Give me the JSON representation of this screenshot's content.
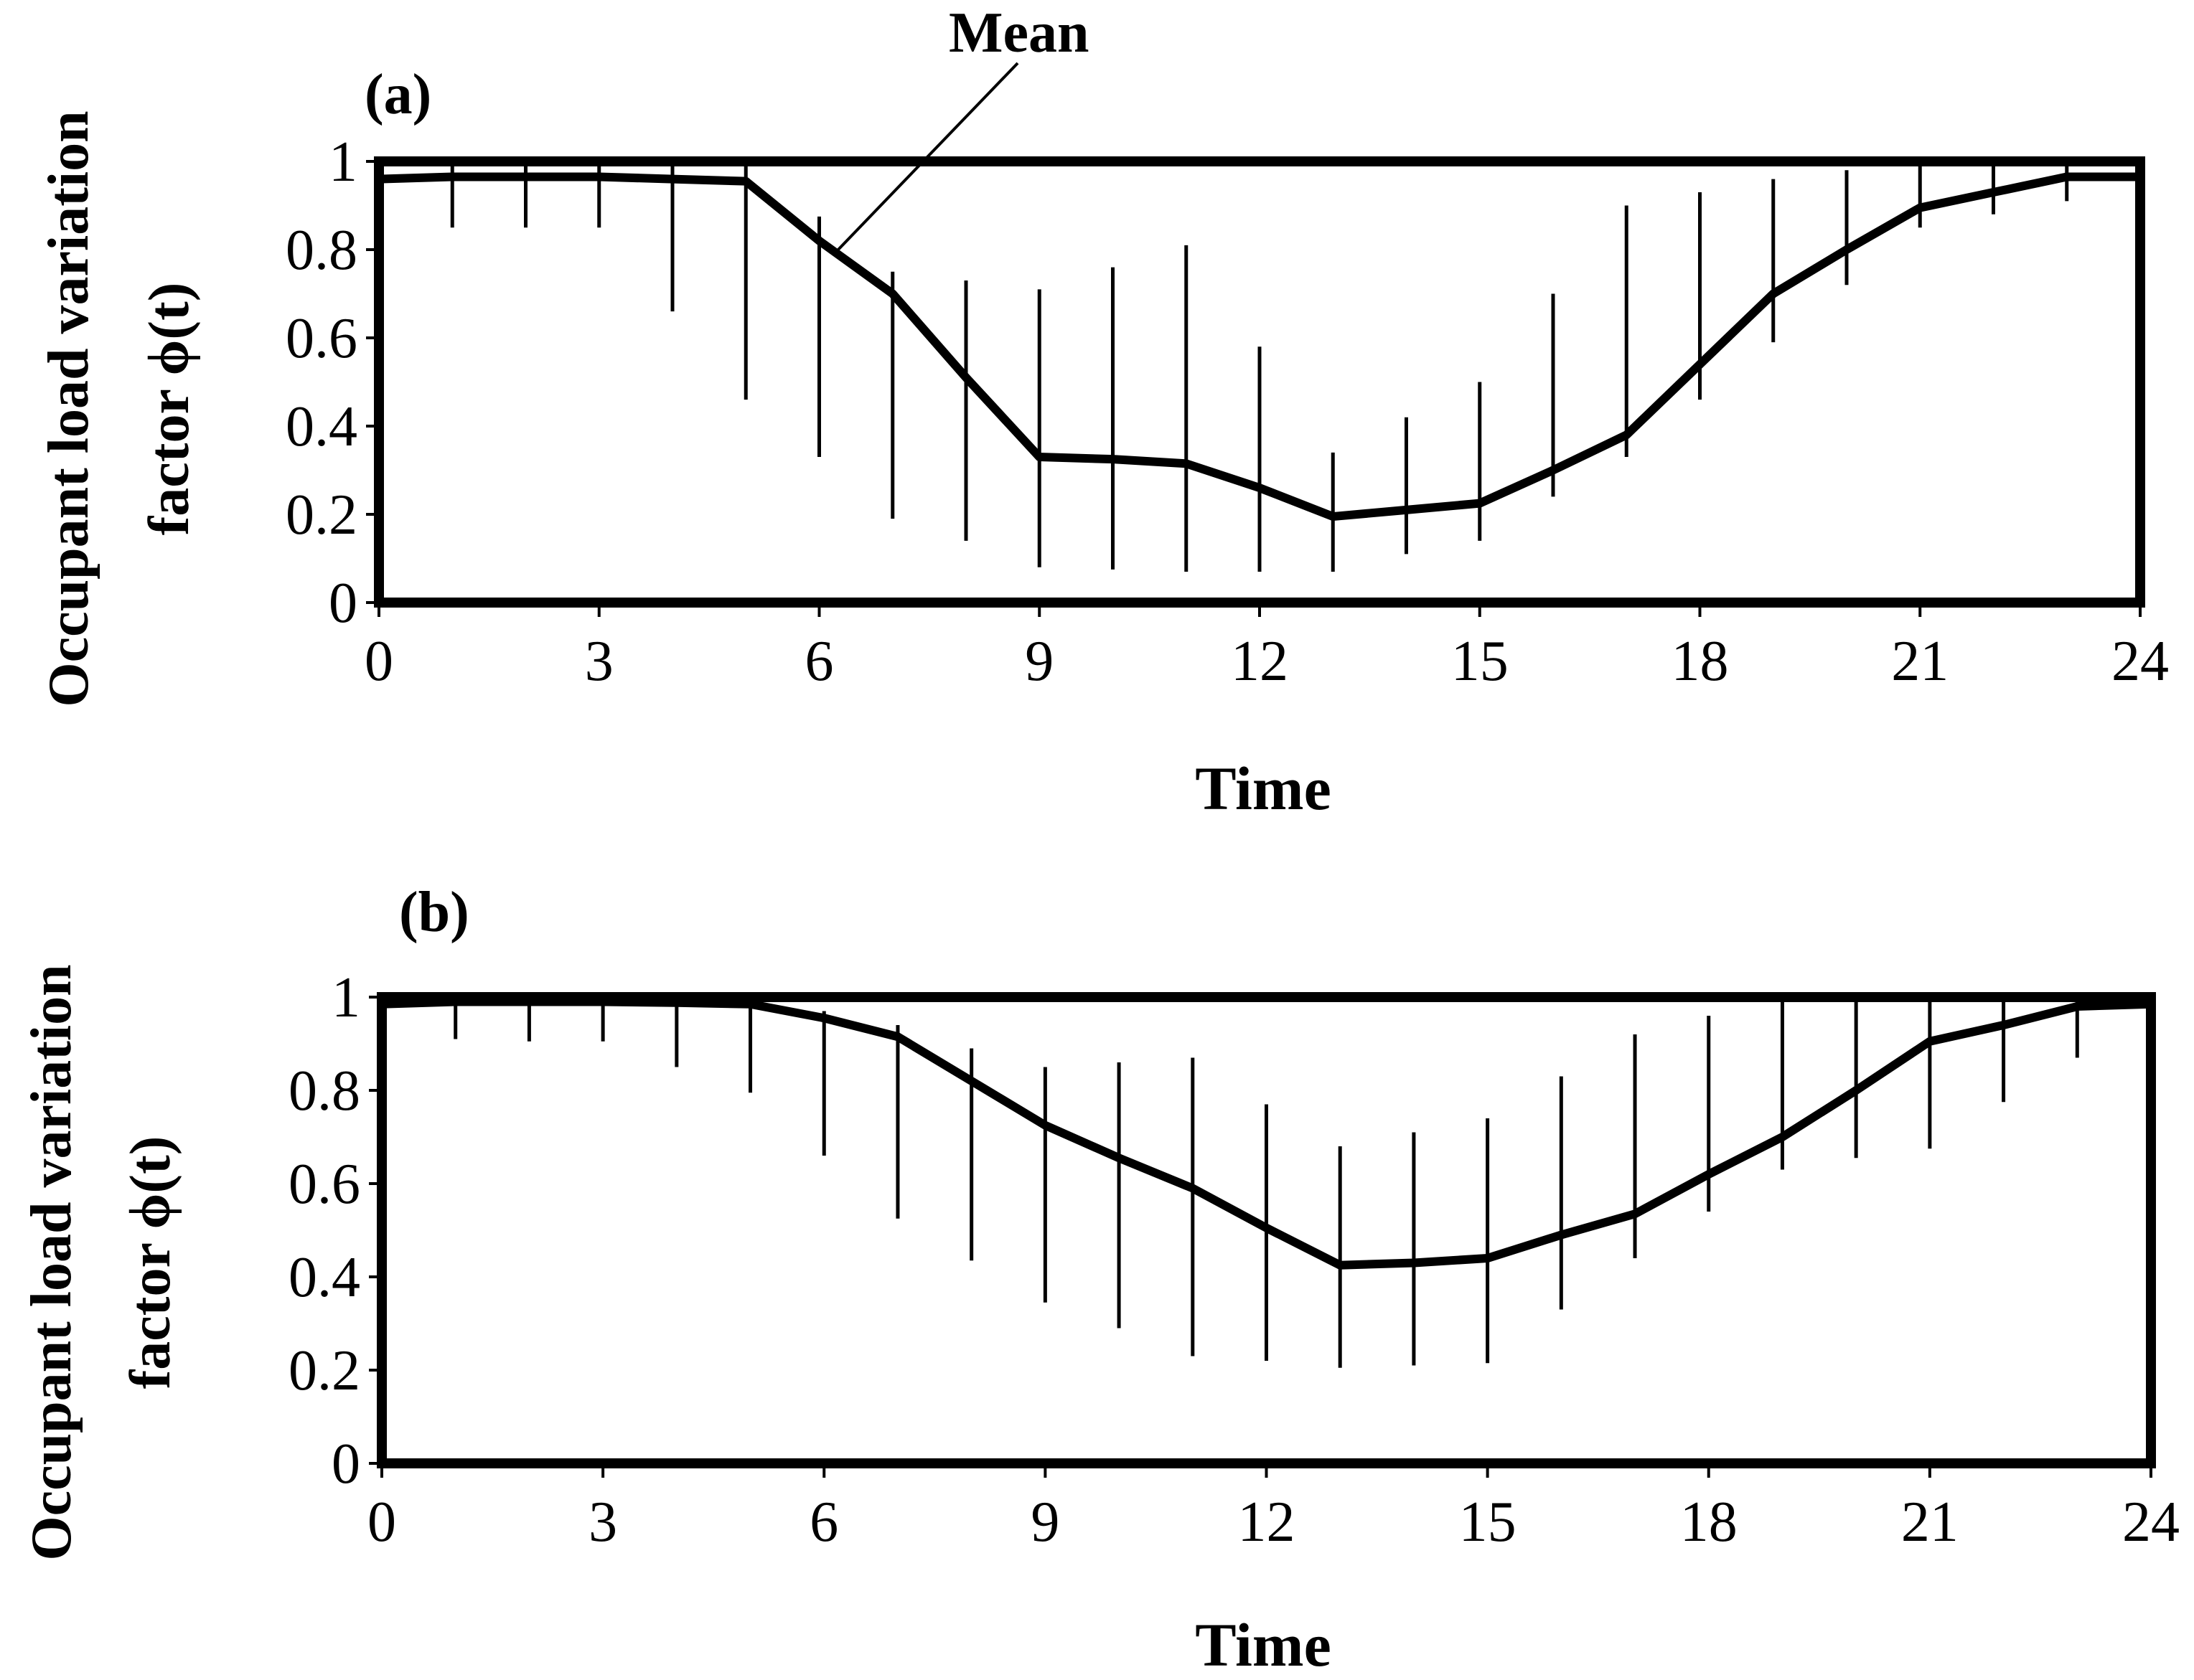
{
  "chart_data": [
    {
      "type": "line",
      "panel_label": "(a)",
      "annotation": "Mean",
      "xlabel": "Time",
      "ylabel_line1": "Occupant load variation",
      "ylabel_line2": "factor ϕ(t)",
      "xlim": [
        0,
        24
      ],
      "ylim": [
        0,
        1
      ],
      "xticks": [
        "0",
        "3",
        "6",
        "9",
        "12",
        "15",
        "18",
        "21",
        "24"
      ],
      "yticks": [
        "0",
        "0.2",
        "0.4",
        "0.6",
        "0.8",
        "1"
      ],
      "x": [
        0,
        1,
        2,
        3,
        4,
        5,
        6,
        7,
        8,
        9,
        10,
        11,
        12,
        13,
        14,
        15,
        16,
        17,
        18,
        19,
        20,
        21,
        22,
        23,
        24
      ],
      "mean": [
        0.96,
        0.965,
        0.965,
        0.965,
        0.96,
        0.955,
        0.82,
        0.7,
        0.51,
        0.33,
        0.325,
        0.315,
        0.26,
        0.195,
        0.21,
        0.225,
        0.3,
        0.38,
        0.54,
        0.7,
        0.8,
        0.895,
        0.93,
        0.965,
        0.965
      ],
      "upper": [
        1,
        1,
        1,
        1,
        1,
        1,
        0.875,
        0.75,
        0.73,
        0.71,
        0.76,
        0.81,
        0.58,
        0.34,
        0.42,
        0.5,
        0.7,
        0.9,
        0.93,
        0.96,
        0.98,
        1,
        1,
        1,
        1
      ],
      "lower": [
        0.93,
        0.85,
        0.85,
        0.85,
        0.66,
        0.46,
        0.33,
        0.19,
        0.14,
        0.08,
        0.075,
        0.07,
        0.07,
        0.07,
        0.11,
        0.14,
        0.24,
        0.33,
        0.46,
        0.59,
        0.72,
        0.85,
        0.88,
        0.91,
        0.93
      ]
    },
    {
      "type": "line",
      "panel_label": "(b)",
      "xlabel": "Time",
      "ylabel_line1": "Occupant load variation",
      "ylabel_line2": "factor ϕ(t)",
      "xlim": [
        0,
        24
      ],
      "ylim": [
        0,
        1
      ],
      "xticks": [
        "0",
        "3",
        "6",
        "9",
        "12",
        "15",
        "18",
        "21",
        "24"
      ],
      "yticks": [
        "0",
        "0.2",
        "0.4",
        "0.6",
        "0.8",
        "1"
      ],
      "x": [
        0,
        1,
        2,
        3,
        4,
        5,
        6,
        7,
        8,
        9,
        10,
        11,
        12,
        13,
        14,
        15,
        16,
        17,
        18,
        19,
        20,
        21,
        22,
        23,
        24
      ],
      "mean": [
        0.985,
        0.99,
        0.99,
        0.99,
        0.988,
        0.985,
        0.955,
        0.915,
        0.82,
        0.725,
        0.655,
        0.59,
        0.505,
        0.425,
        0.43,
        0.44,
        0.49,
        0.535,
        0.62,
        0.7,
        0.8,
        0.905,
        0.94,
        0.98,
        0.985
      ],
      "upper": [
        1,
        1,
        1,
        1,
        1,
        1,
        0.97,
        0.94,
        0.89,
        0.85,
        0.86,
        0.87,
        0.77,
        0.68,
        0.71,
        0.74,
        0.83,
        0.92,
        0.96,
        1,
        1,
        1,
        1,
        1,
        1
      ],
      "lower": [
        0.96,
        0.91,
        0.905,
        0.905,
        0.85,
        0.795,
        0.66,
        0.525,
        0.435,
        0.345,
        0.29,
        0.23,
        0.22,
        0.205,
        0.21,
        0.215,
        0.33,
        0.44,
        0.54,
        0.63,
        0.655,
        0.675,
        0.775,
        0.87,
        0.96
      ]
    }
  ]
}
